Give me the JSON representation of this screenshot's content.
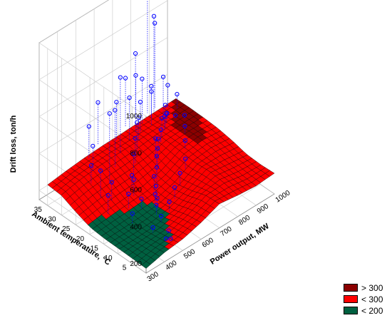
{
  "chart_data": {
    "type": "surface3d",
    "title": "",
    "zlabel": "Drift loss, ton/h",
    "xlabel": "Power output, MW",
    "ylabel": "Ambient temperature, °C",
    "xlim": [
      300,
      1000
    ],
    "ylim": [
      0,
      38
    ],
    "zlim": [
      150,
      1000
    ],
    "x_ticks": [
      "300",
      "400",
      "500",
      "600",
      "700",
      "800",
      "900",
      "1000"
    ],
    "y_ticks": [
      "5",
      "10",
      "15",
      "20",
      "25",
      "30",
      "35"
    ],
    "z_ticks": [
      "200",
      "400",
      "600",
      "800",
      "1000"
    ],
    "grid": true,
    "legend_position": "bottom-right",
    "legend": [
      {
        "label": "> 300",
        "color": "#8b0000"
      },
      {
        "label": "< 300",
        "color": "#ff0000"
      },
      {
        "label": "< 200",
        "color": "#006040"
      }
    ],
    "surface": {
      "x": [
        300,
        400,
        500,
        600,
        700,
        800,
        900,
        1000
      ],
      "y": [
        0,
        5,
        10,
        15,
        20,
        25,
        30,
        35
      ],
      "z": [
        [
          175,
          200,
          212,
          240,
          280,
          265,
          255,
          262
        ],
        [
          178,
          190,
          198,
          230,
          275,
          282,
          262,
          258
        ],
        [
          180,
          182,
          186,
          206,
          248,
          290,
          276,
          262
        ],
        [
          182,
          185,
          190,
          200,
          230,
          284,
          294,
          282
        ],
        [
          190,
          202,
          210,
          215,
          240,
          290,
          304,
          295
        ],
        [
          220,
          240,
          250,
          255,
          270,
          296,
          302,
          300
        ],
        [
          255,
          275,
          285,
          290,
          292,
          298,
          300,
          302
        ],
        [
          262,
          275,
          285,
          290,
          292,
          296,
          298,
          300
        ]
      ]
    },
    "points": [
      {
        "x": 470,
        "y": 4,
        "z": 190
      },
      {
        "x": 480,
        "y": 3,
        "z": 195
      },
      {
        "x": 500,
        "y": 5,
        "z": 205
      },
      {
        "x": 460,
        "y": 8,
        "z": 215
      },
      {
        "x": 520,
        "y": 9,
        "z": 230
      },
      {
        "x": 540,
        "y": 12,
        "z": 245
      },
      {
        "x": 560,
        "y": 13,
        "z": 260
      },
      {
        "x": 580,
        "y": 15,
        "z": 250
      },
      {
        "x": 600,
        "y": 16,
        "z": 270
      },
      {
        "x": 620,
        "y": 18,
        "z": 290
      },
      {
        "x": 650,
        "y": 19,
        "z": 310
      },
      {
        "x": 680,
        "y": 21,
        "z": 330
      },
      {
        "x": 700,
        "y": 22,
        "z": 350
      },
      {
        "x": 720,
        "y": 24,
        "z": 370
      },
      {
        "x": 750,
        "y": 25,
        "z": 340
      },
      {
        "x": 780,
        "y": 26,
        "z": 360
      },
      {
        "x": 800,
        "y": 27,
        "z": 400
      },
      {
        "x": 830,
        "y": 28,
        "z": 380
      },
      {
        "x": 850,
        "y": 29,
        "z": 420
      },
      {
        "x": 870,
        "y": 30,
        "z": 350
      },
      {
        "x": 890,
        "y": 31,
        "z": 330
      },
      {
        "x": 920,
        "y": 30,
        "z": 310
      },
      {
        "x": 700,
        "y": 32,
        "z": 520
      },
      {
        "x": 750,
        "y": 33,
        "z": 600
      },
      {
        "x": 800,
        "y": 34,
        "z": 540
      },
      {
        "x": 820,
        "y": 32,
        "z": 480
      },
      {
        "x": 850,
        "y": 34,
        "z": 470
      },
      {
        "x": 620,
        "y": 30,
        "z": 700
      },
      {
        "x": 560,
        "y": 28,
        "z": 580
      },
      {
        "x": 500,
        "y": 26,
        "z": 620
      },
      {
        "x": 860,
        "y": 36,
        "z": 950
      },
      {
        "x": 880,
        "y": 35,
        "z": 820
      },
      {
        "x": 900,
        "y": 36,
        "z": 760
      },
      {
        "x": 540,
        "y": 20,
        "z": 300
      },
      {
        "x": 480,
        "y": 18,
        "z": 280
      },
      {
        "x": 450,
        "y": 22,
        "z": 320
      },
      {
        "x": 420,
        "y": 24,
        "z": 380
      },
      {
        "x": 400,
        "y": 20,
        "z": 300
      },
      {
        "x": 440,
        "y": 14,
        "z": 240
      },
      {
        "x": 600,
        "y": 24,
        "z": 360
      },
      {
        "x": 640,
        "y": 26,
        "z": 400
      },
      {
        "x": 680,
        "y": 28,
        "z": 440
      },
      {
        "x": 720,
        "y": 30,
        "z": 420
      },
      {
        "x": 760,
        "y": 32,
        "z": 460
      },
      {
        "x": 580,
        "y": 10,
        "z": 260
      },
      {
        "x": 640,
        "y": 12,
        "z": 280
      },
      {
        "x": 700,
        "y": 14,
        "z": 300
      },
      {
        "x": 760,
        "y": 16,
        "z": 320
      },
      {
        "x": 820,
        "y": 20,
        "z": 340
      },
      {
        "x": 880,
        "y": 24,
        "z": 340
      },
      {
        "x": 940,
        "y": 28,
        "z": 320
      },
      {
        "x": 520,
        "y": 16,
        "z": 250
      },
      {
        "x": 560,
        "y": 22,
        "z": 290
      },
      {
        "x": 660,
        "y": 34,
        "z": 500
      },
      {
        "x": 740,
        "y": 36,
        "z": 560
      },
      {
        "x": 810,
        "y": 37,
        "z": 640
      },
      {
        "x": 470,
        "y": 30,
        "z": 420
      },
      {
        "x": 430,
        "y": 28,
        "z": 360
      },
      {
        "x": 510,
        "y": 34,
        "z": 460
      },
      {
        "x": 590,
        "y": 36,
        "z": 520
      },
      {
        "x": 900,
        "y": 33,
        "z": 500
      },
      {
        "x": 940,
        "y": 34,
        "z": 420
      },
      {
        "x": 960,
        "y": 32,
        "z": 380
      }
    ]
  },
  "legend": {
    "high_label": "> 300",
    "mid_label": "< 300",
    "low_label": "< 200",
    "high_color": "#8b0000",
    "mid_color": "#ff0000",
    "low_color": "#006040"
  }
}
